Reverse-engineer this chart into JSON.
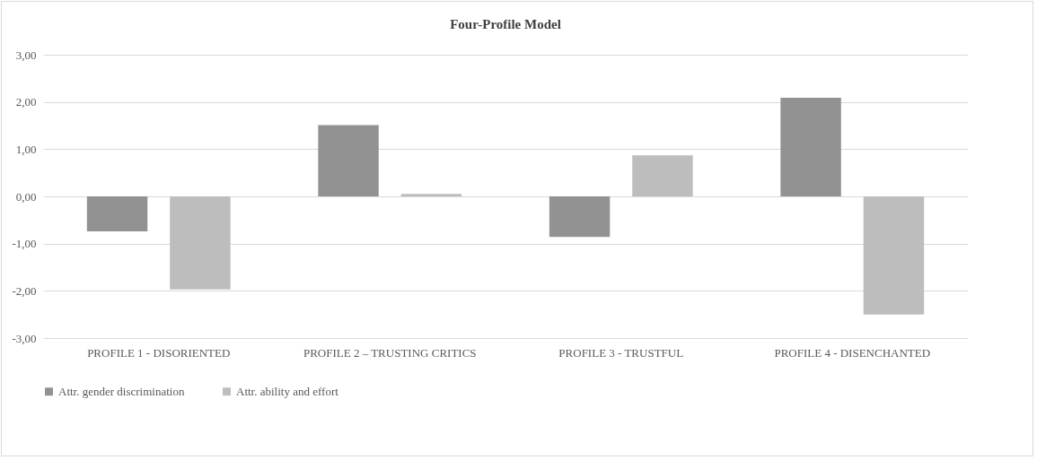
{
  "chart_data": {
    "type": "bar",
    "title": "Four-Profile Model",
    "categories": [
      "PROFILE 1 - DISORIENTED",
      "PROFILE 2 – TRUSTING CRITICS",
      "PROFILE 3 - TRUSTFUL",
      "PROFILE 4 - DISENCHANTED"
    ],
    "series": [
      {
        "name": "Attr. gender discrimination",
        "color": "#929292",
        "values": [
          -0.74,
          1.51,
          -0.86,
          2.09
        ]
      },
      {
        "name": "Attr. ability and effort",
        "color": "#bdbdbd",
        "values": [
          -1.97,
          0.05,
          0.87,
          -2.5
        ]
      }
    ],
    "ylim": [
      -3,
      3
    ],
    "yticks": [
      {
        "value": -3,
        "label": "-3,00"
      },
      {
        "value": -2,
        "label": "-2,00"
      },
      {
        "value": -1,
        "label": "-1,00"
      },
      {
        "value": 0,
        "label": "0,00"
      },
      {
        "value": 1,
        "label": "1,00"
      },
      {
        "value": 2,
        "label": "2,00"
      },
      {
        "value": 3,
        "label": "3,00"
      }
    ],
    "grid": true,
    "legend": "bottom"
  }
}
